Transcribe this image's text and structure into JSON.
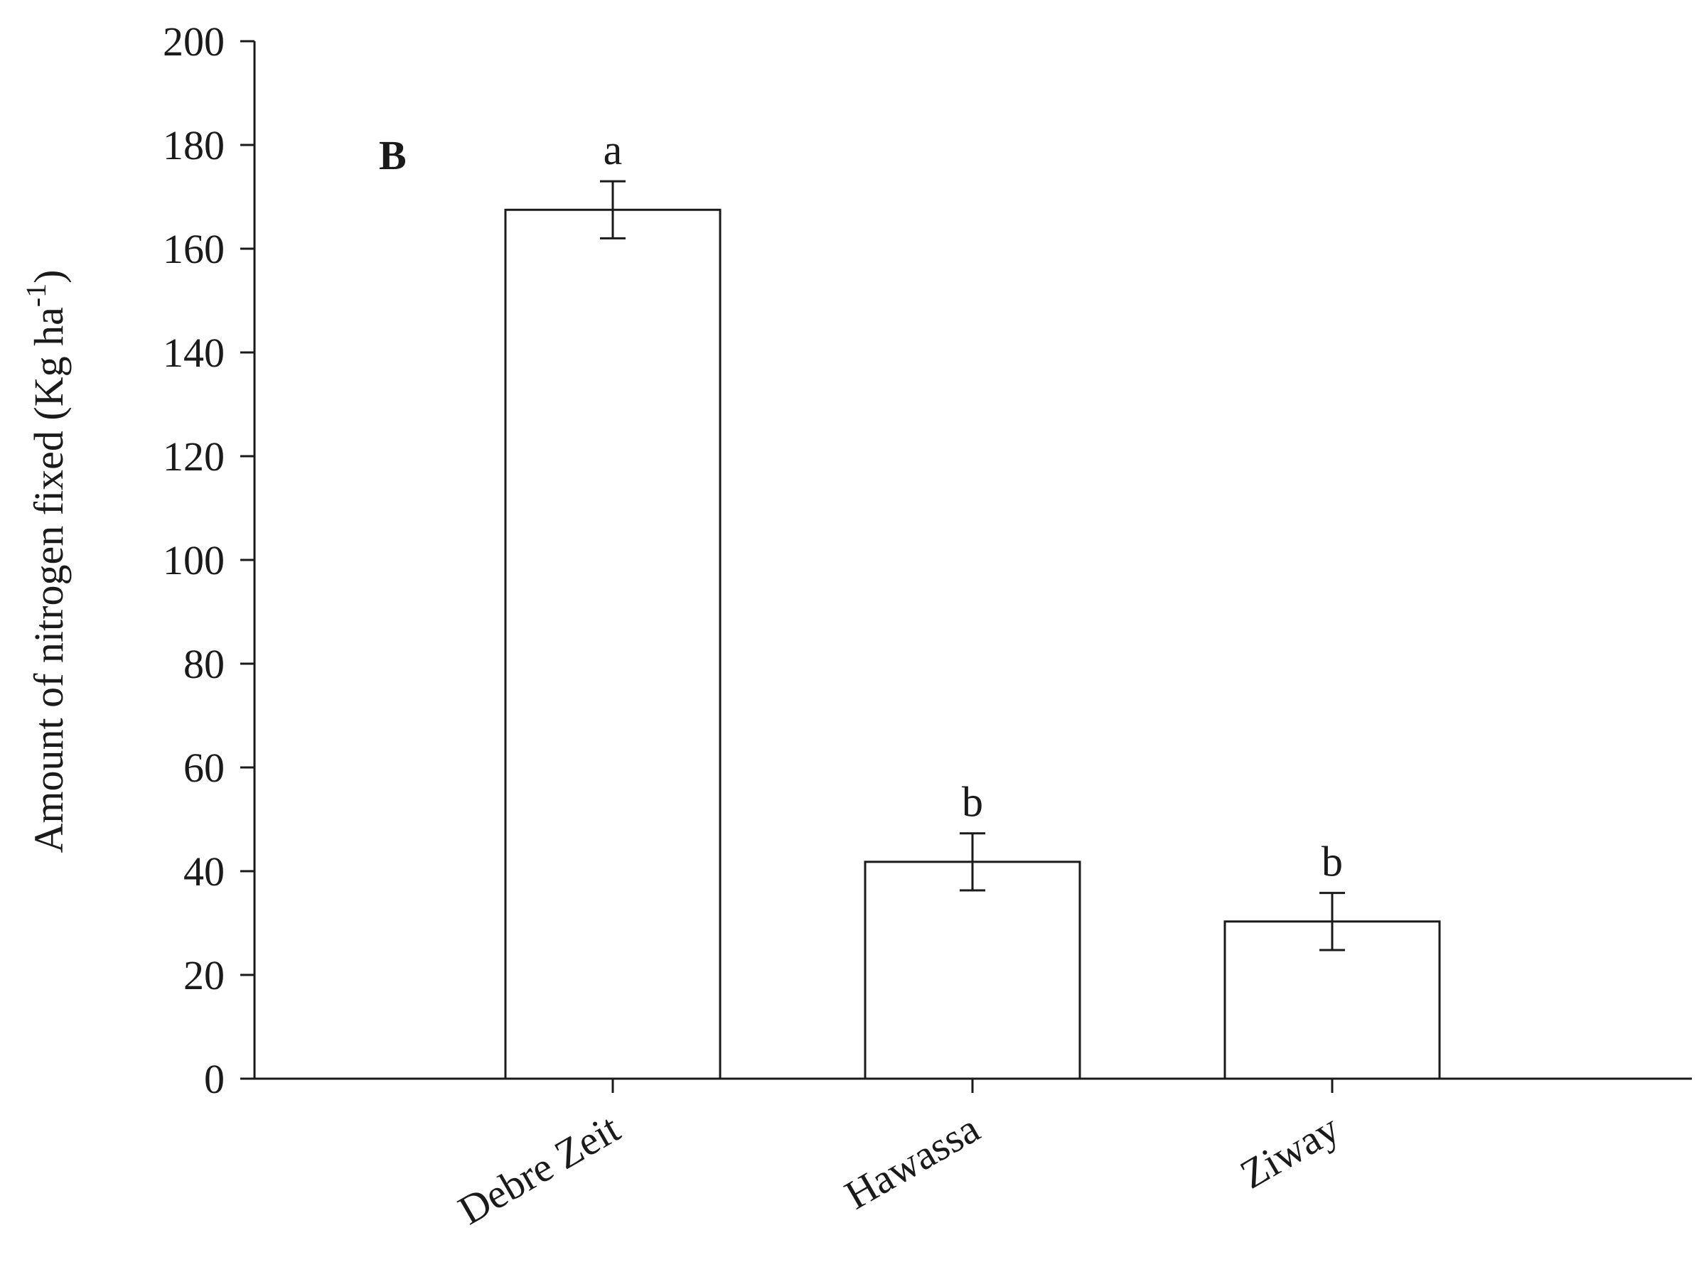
{
  "chart_data": {
    "type": "bar",
    "panel_label": "B",
    "categories": [
      "Debre Zeit",
      "Hawassa",
      "Ziway"
    ],
    "values": [
      167.5,
      41.8,
      30.3
    ],
    "errors": [
      5.5,
      5.5,
      5.5
    ],
    "significance_letters": [
      "a",
      "b",
      "b"
    ],
    "ylabel": {
      "main": "Amount of nitrogen fixed (Kg ha",
      "sup": "-1",
      "close": ")"
    },
    "xlabel": "",
    "ylim": [
      0,
      200
    ],
    "yticks": [
      "0",
      "20",
      "40",
      "60",
      "80",
      "100",
      "120",
      "140",
      "160",
      "180",
      "200"
    ],
    "grid": false,
    "legend": "none",
    "colors": {
      "bar_fill": "#ffffff",
      "bar_stroke": "#1a1a1a",
      "axis": "#1a1a1a"
    }
  }
}
